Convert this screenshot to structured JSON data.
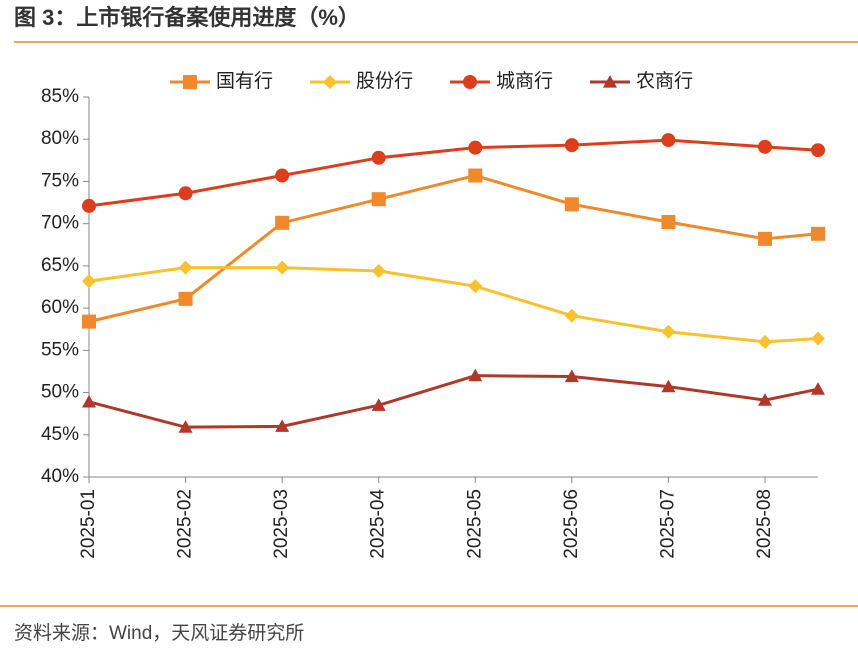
{
  "chart_data": {
    "type": "line",
    "title": "图 3：上市银行备案使用进度（%）",
    "source": "资料来源：Wind，天风证券研究所",
    "categories": [
      "2025-01",
      "2025-02",
      "2025-03",
      "2025-04",
      "2025-05",
      "2025-06",
      "2025-07",
      "2025-08",
      null
    ],
    "series": [
      {
        "name": "国有行",
        "color": "#f0892b",
        "marker": "square",
        "values": [
          58.4,
          61.1,
          70.1,
          72.9,
          75.7,
          72.3,
          70.2,
          68.2,
          68.8
        ]
      },
      {
        "name": "股份行",
        "color": "#f9c12e",
        "marker": "diamond",
        "values": [
          63.2,
          64.8,
          64.8,
          64.4,
          62.6,
          59.1,
          57.2,
          56.0,
          56.4
        ]
      },
      {
        "name": "城商行",
        "color": "#dc3e1c",
        "marker": "circle",
        "values": [
          72.1,
          73.6,
          75.7,
          77.8,
          79.0,
          79.3,
          79.9,
          79.1,
          78.7
        ]
      },
      {
        "name": "农商行",
        "color": "#b0382a",
        "marker": "triangle",
        "values": [
          48.9,
          45.9,
          46.0,
          48.5,
          52.0,
          51.9,
          50.7,
          49.1,
          50.4
        ]
      }
    ],
    "ylim": [
      40,
      85
    ],
    "yticks": [
      {
        "value": 40,
        "label": "40%"
      },
      {
        "value": 45,
        "label": "45%"
      },
      {
        "value": 50,
        "label": "50%"
      },
      {
        "value": 55,
        "label": "55%"
      },
      {
        "value": 60,
        "label": "60%"
      },
      {
        "value": 65,
        "label": "65%"
      },
      {
        "value": 70,
        "label": "70%"
      },
      {
        "value": 75,
        "label": "75%"
      },
      {
        "value": 80,
        "label": "80%"
      },
      {
        "value": 85,
        "label": "85%"
      }
    ],
    "legend": "top"
  }
}
